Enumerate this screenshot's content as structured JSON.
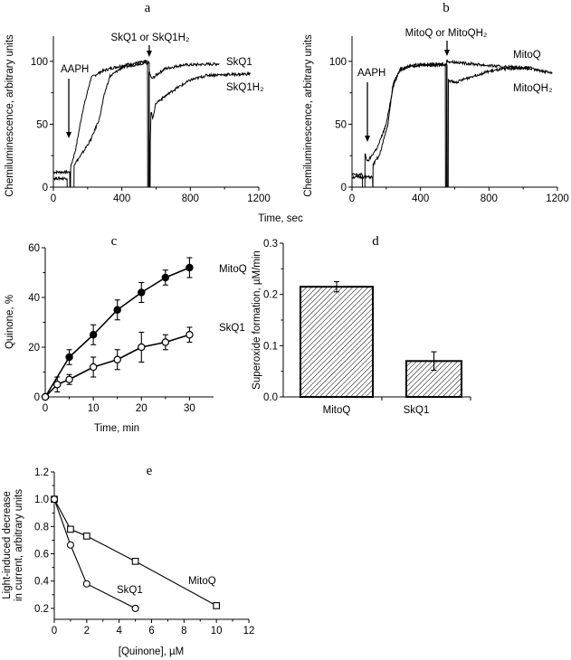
{
  "shared_xlabel": "Time, sec",
  "chart_data": [
    {
      "panel": "a",
      "type": "line",
      "ylabel": "Chemiluminescence, arbitrary units",
      "xlim": [
        0,
        1200
      ],
      "ylim": [
        0,
        120
      ],
      "xticks": [
        0,
        400,
        800,
        1200
      ],
      "yticks": [
        0,
        50,
        100
      ],
      "annotations": [
        {
          "text": "AAPH",
          "arrow_x": 90
        },
        {
          "text": "SkQ1 or SkQ1H₂",
          "arrow_x": 560
        }
      ],
      "series": [
        {
          "name": "SkQ1",
          "points": [
            [
              0,
              12
            ],
            [
              95,
              12
            ],
            [
              96,
              0
            ],
            [
              100,
              0
            ],
            [
              101,
              16
            ],
            [
              130,
              30
            ],
            [
              170,
              60
            ],
            [
              220,
              87
            ],
            [
              280,
              92
            ],
            [
              350,
              95
            ],
            [
              450,
              98
            ],
            [
              550,
              100
            ],
            [
              551,
              0
            ],
            [
              557,
              0
            ],
            [
              558,
              92
            ],
            [
              575,
              86
            ],
            [
              600,
              89
            ],
            [
              650,
              94
            ],
            [
              750,
              97
            ],
            [
              970,
              98
            ]
          ]
        },
        {
          "name": "SkQ1H₂",
          "points": [
            [
              0,
              7
            ],
            [
              80,
              7
            ],
            [
              81,
              0
            ],
            [
              120,
              0
            ],
            [
              121,
              18
            ],
            [
              160,
              25
            ],
            [
              220,
              38
            ],
            [
              270,
              55
            ],
            [
              300,
              75
            ],
            [
              330,
              88
            ],
            [
              400,
              95
            ],
            [
              500,
              98
            ],
            [
              560,
              99
            ],
            [
              561,
              0
            ],
            [
              565,
              0
            ],
            [
              566,
              35
            ],
            [
              570,
              60
            ],
            [
              580,
              55
            ],
            [
              600,
              67
            ],
            [
              650,
              72
            ],
            [
              700,
              77
            ],
            [
              800,
              85
            ],
            [
              900,
              89
            ],
            [
              1150,
              90
            ]
          ]
        }
      ]
    },
    {
      "panel": "b",
      "type": "line",
      "ylabel": "Chemiluminescence, arbitrary units",
      "xlim": [
        0,
        1200
      ],
      "ylim": [
        0,
        120
      ],
      "xticks": [
        0,
        400,
        800,
        1200
      ],
      "yticks": [
        0,
        50,
        100
      ],
      "annotations": [
        {
          "text": "AAPH",
          "arrow_x": 90
        },
        {
          "text": "MitoQ or MitoQH₂",
          "arrow_x": 555
        }
      ],
      "series": [
        {
          "name": "MitoQ",
          "points": [
            [
              0,
              10
            ],
            [
              60,
              10
            ],
            [
              61,
              0
            ],
            [
              75,
              0
            ],
            [
              76,
              27
            ],
            [
              90,
              20
            ],
            [
              150,
              32
            ],
            [
              200,
              50
            ],
            [
              240,
              80
            ],
            [
              280,
              93
            ],
            [
              350,
              97
            ],
            [
              545,
              98
            ],
            [
              546,
              0
            ],
            [
              552,
              0
            ],
            [
              553,
              100
            ],
            [
              700,
              98
            ],
            [
              850,
              96
            ],
            [
              1000,
              95
            ],
            [
              1170,
              91
            ]
          ]
        },
        {
          "name": "MitoQH₂",
          "points": [
            [
              0,
              8
            ],
            [
              120,
              8
            ],
            [
              121,
              0
            ],
            [
              122,
              0
            ],
            [
              123,
              18
            ],
            [
              160,
              25
            ],
            [
              210,
              50
            ],
            [
              240,
              82
            ],
            [
              280,
              94
            ],
            [
              400,
              97
            ],
            [
              555,
              97
            ],
            [
              556,
              0
            ],
            [
              562,
              0
            ],
            [
              563,
              85
            ],
            [
              600,
              83
            ],
            [
              700,
              88
            ],
            [
              800,
              92
            ],
            [
              900,
              94
            ],
            [
              1050,
              95
            ]
          ]
        }
      ]
    },
    {
      "panel": "c",
      "type": "line",
      "xlabel": "Time, min",
      "ylabel": "Quinone, %",
      "xlim": [
        0,
        35
      ],
      "ylim": [
        0,
        60
      ],
      "xticks": [
        0,
        10,
        20,
        30
      ],
      "yticks": [
        0,
        20,
        40,
        60
      ],
      "series": [
        {
          "name": "MitoQ",
          "marker": "filled-circle",
          "x": [
            0,
            5,
            10,
            15,
            20,
            25,
            30
          ],
          "y": [
            0,
            16,
            25,
            35,
            42,
            48,
            52
          ],
          "err": [
            0,
            3,
            4,
            4,
            4,
            3,
            4
          ]
        },
        {
          "name": "SkQ1",
          "marker": "open-circle",
          "x": [
            0,
            2.5,
            5,
            10,
            15,
            20,
            25,
            30
          ],
          "y": [
            0,
            5,
            7,
            12,
            15,
            20,
            22,
            25
          ],
          "err": [
            0,
            3,
            2,
            4,
            4,
            6,
            3,
            3
          ]
        }
      ]
    },
    {
      "panel": "d",
      "type": "bar",
      "ylabel": "Superoxide formation, µM/min",
      "ylim": [
        0,
        0.3
      ],
      "yticks": [
        "0.0",
        "0.1",
        "0.2",
        "0.3"
      ],
      "categories": [
        "MitoQ",
        "SkQ1"
      ],
      "values": [
        0.215,
        0.07
      ],
      "err": [
        0.01,
        0.018
      ]
    },
    {
      "panel": "e",
      "type": "line",
      "xlabel": "[Quinone], µM",
      "ylabel": [
        "Light-induced decrease",
        "in current, arbitrary units"
      ],
      "xlim": [
        0,
        12
      ],
      "ylim": [
        0.12,
        1.2
      ],
      "xticks": [
        0,
        2,
        4,
        6,
        8,
        10,
        12
      ],
      "yticks": [
        "0.2",
        "0.4",
        "0.6",
        "0.8",
        "1.0",
        "1.2"
      ],
      "series": [
        {
          "name": "MitoQ",
          "marker": "open-square",
          "x": [
            0,
            1,
            2,
            5,
            10
          ],
          "y": [
            1.0,
            0.78,
            0.73,
            0.545,
            0.22
          ]
        },
        {
          "name": "SkQ1",
          "marker": "open-circle",
          "x": [
            0,
            1,
            2,
            5
          ],
          "y": [
            1.0,
            0.665,
            0.38,
            0.2
          ]
        }
      ]
    }
  ]
}
